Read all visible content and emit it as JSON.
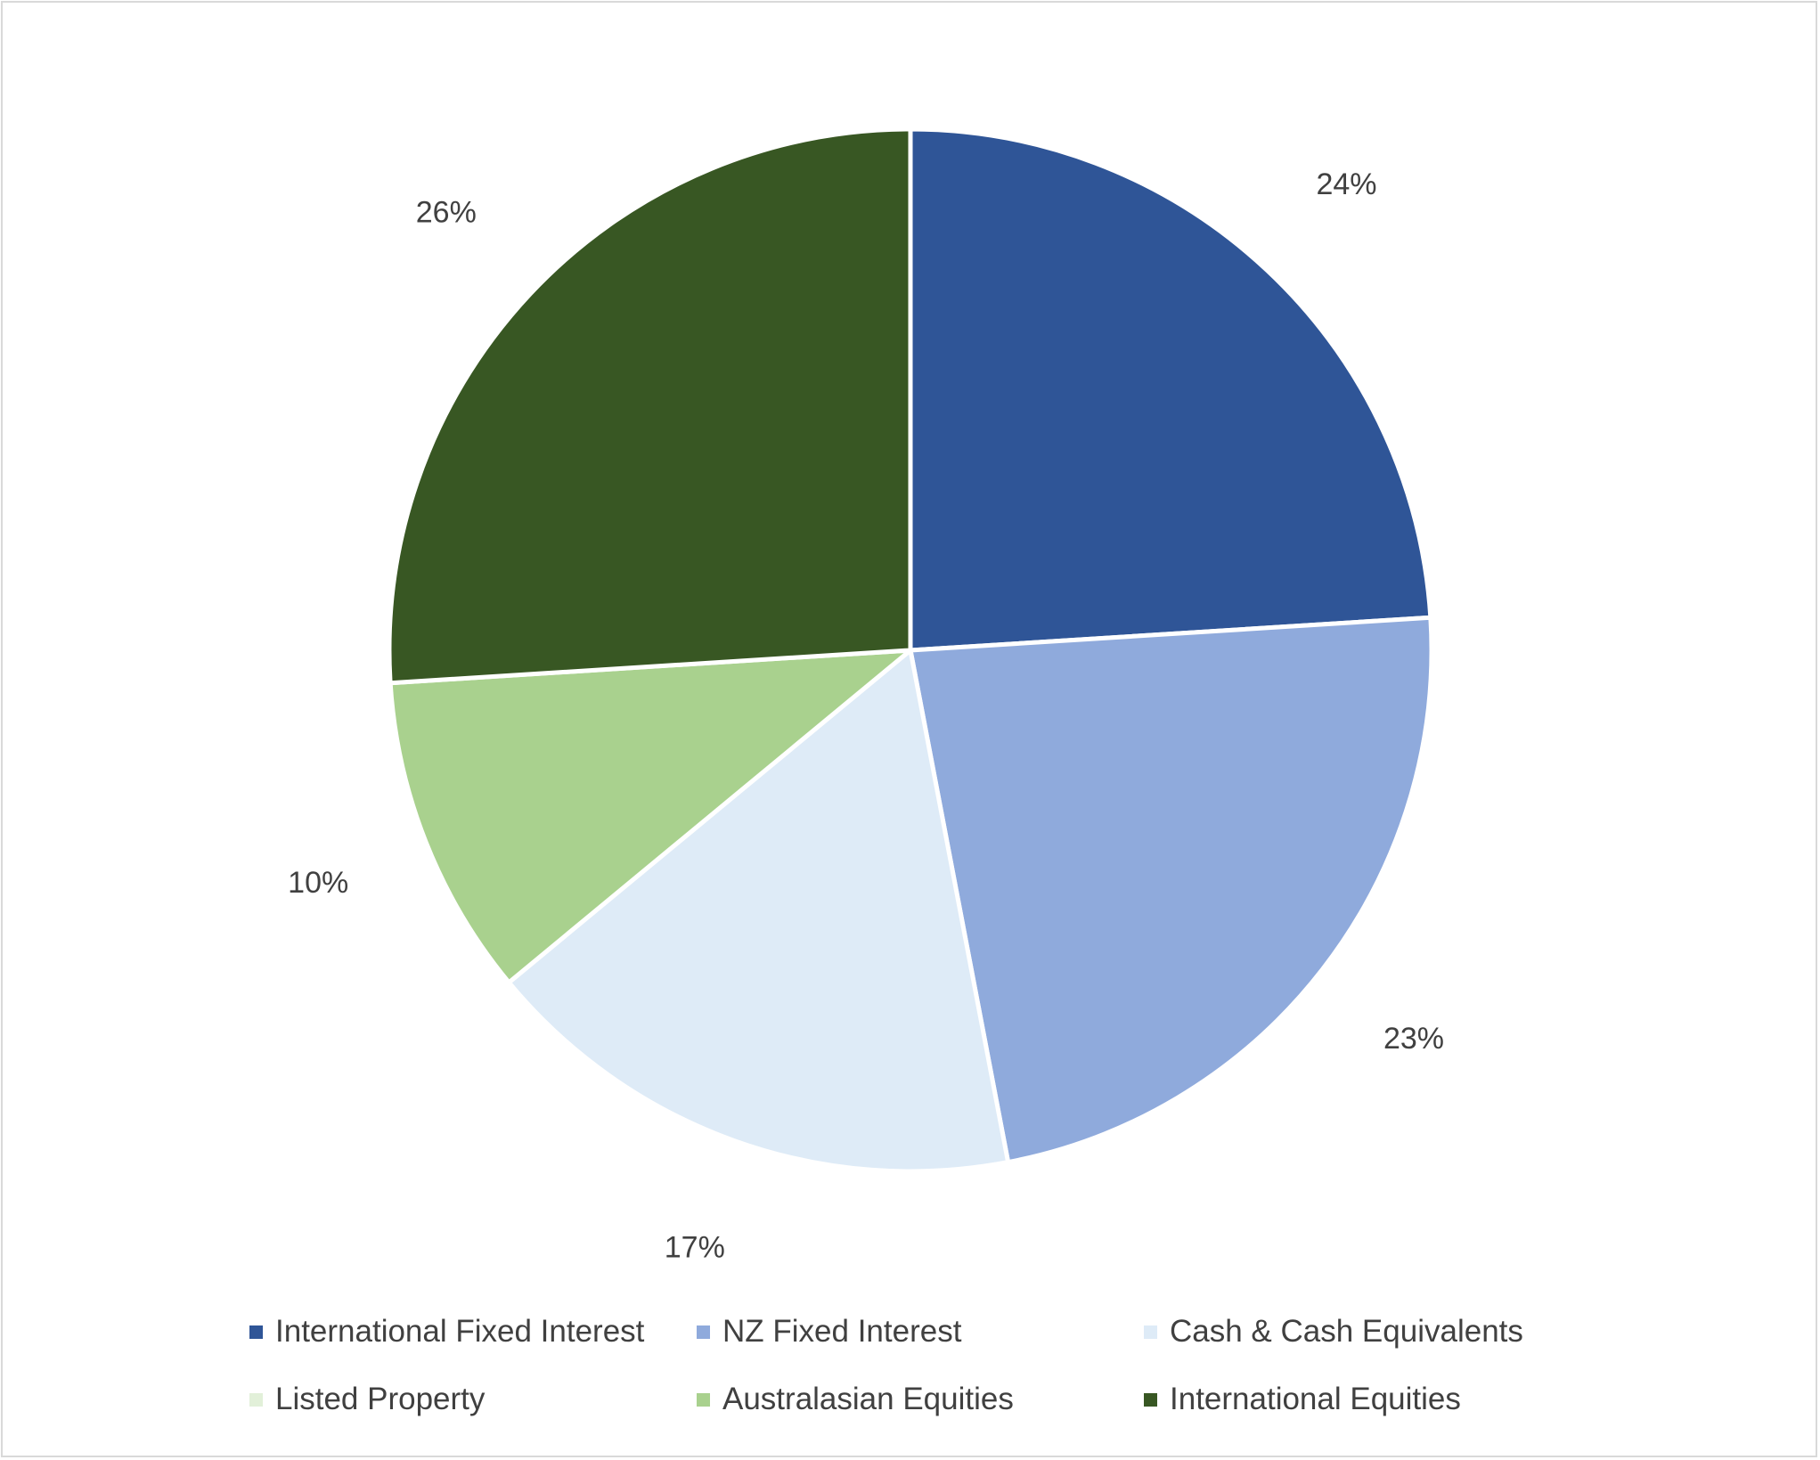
{
  "chart_data": {
    "type": "pie",
    "title": "",
    "slices": [
      {
        "label": "International Fixed Interest",
        "value": 24,
        "data_label": "24%",
        "color": "#2F5597"
      },
      {
        "label": "NZ Fixed Interest",
        "value": 23,
        "data_label": "23%",
        "color": "#8FAADC"
      },
      {
        "label": "Cash & Cash Equivalents",
        "value": 17,
        "data_label": "17%",
        "color": "#DEEBF7"
      },
      {
        "label": "Listed Property",
        "value": 0,
        "data_label": "",
        "color": "#E2F0D9"
      },
      {
        "label": "Australasian Equities",
        "value": 10,
        "data_label": "10%",
        "color": "#A9D18E"
      },
      {
        "label": "International Equities",
        "value": 26,
        "data_label": "26%",
        "color": "#385723"
      }
    ],
    "legend_position": "bottom",
    "start_angle": "12 o'clock",
    "direction": "clockwise"
  }
}
